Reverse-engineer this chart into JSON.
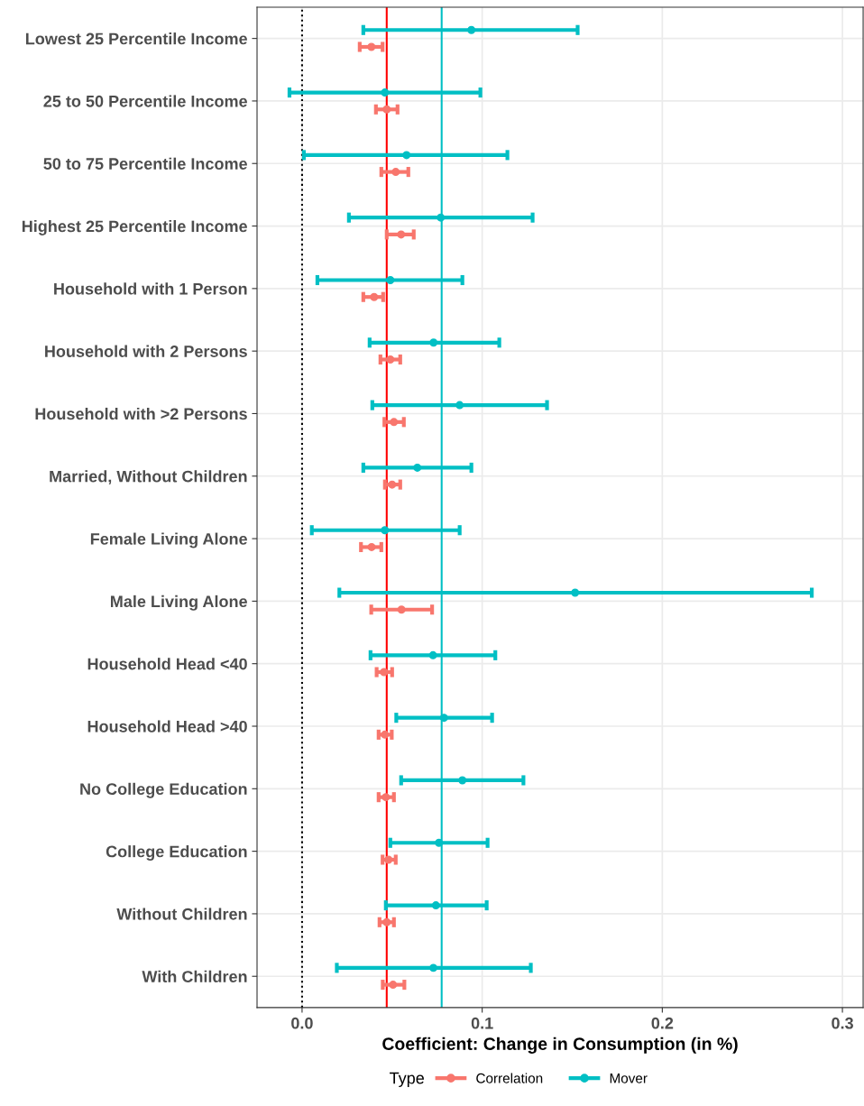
{
  "chart_data": {
    "type": "scatter",
    "orientation": "horizontal",
    "xlabel": "Coefficient: Change in Consumption (in %)",
    "legend_title": "Type",
    "categories": [
      "Lowest 25 Percentile Income",
      "25 to 50 Percentile Income",
      "50 to 75 Percentile Income",
      "Highest 25 Percentile Income",
      "Household with 1 Person",
      "Household with 2 Persons",
      "Household with >2 Persons",
      "Married, Without Children",
      "Female Living Alone",
      "Male Living Alone",
      "Household Head <40",
      "Household Head >40",
      "No College Education",
      "College Education",
      "Without Children",
      "With Children"
    ],
    "series": [
      {
        "name": "Correlation",
        "color": "#f8766d",
        "values": [
          0.0385,
          0.047,
          0.052,
          0.055,
          0.04,
          0.049,
          0.051,
          0.05,
          0.0386,
          0.0552,
          0.0455,
          0.046,
          0.0465,
          0.048,
          0.047,
          0.0505
        ],
        "errors": [
          [
            0.032,
            0.0447
          ],
          [
            0.041,
            0.053
          ],
          [
            0.044,
            0.059
          ],
          [
            0.047,
            0.062
          ],
          [
            0.034,
            0.045
          ],
          [
            0.0435,
            0.0545
          ],
          [
            0.0457,
            0.0565
          ],
          [
            0.046,
            0.0545
          ],
          [
            0.0327,
            0.044
          ],
          [
            0.0384,
            0.0722
          ],
          [
            0.0414,
            0.05
          ],
          [
            0.0425,
            0.0498
          ],
          [
            0.0425,
            0.051
          ],
          [
            0.0447,
            0.052
          ],
          [
            0.043,
            0.051
          ],
          [
            0.0448,
            0.0568
          ]
        ]
      },
      {
        "name": "Mover",
        "color": "#00bfc4",
        "values": [
          0.094,
          0.046,
          0.058,
          0.077,
          0.049,
          0.073,
          0.0875,
          0.064,
          0.046,
          0.1516,
          0.0727,
          0.0788,
          0.089,
          0.076,
          0.0743,
          0.0729
        ],
        "errors": [
          [
            0.034,
            0.153
          ],
          [
            -0.007,
            0.099
          ],
          [
            0.001,
            0.114
          ],
          [
            0.026,
            0.128
          ],
          [
            0.0085,
            0.089
          ],
          [
            0.0375,
            0.1095
          ],
          [
            0.039,
            0.136
          ],
          [
            0.034,
            0.094
          ],
          [
            0.0054,
            0.0875
          ],
          [
            0.0207,
            0.283
          ],
          [
            0.038,
            0.1073
          ],
          [
            0.0523,
            0.1055
          ],
          [
            0.055,
            0.1229
          ],
          [
            0.049,
            0.103
          ],
          [
            0.0465,
            0.1025
          ],
          [
            0.0193,
            0.127
          ]
        ]
      }
    ],
    "ref_lines": [
      {
        "axis": "x",
        "value": 0,
        "color": "#000000",
        "line_style": "dotted"
      },
      {
        "axis": "x",
        "value": 0.047,
        "color": "#ff0000",
        "line_style": "solid"
      },
      {
        "axis": "x",
        "value": 0.0775,
        "color": "#00bfc4",
        "line_style": "solid"
      }
    ],
    "xlim": [
      -0.025,
      0.3115
    ],
    "xticks": [
      {
        "value": 0,
        "label": "0.0"
      },
      {
        "value": 0.1,
        "label": "0.1"
      },
      {
        "value": 0.2,
        "label": "0.2"
      },
      {
        "value": 0.3,
        "label": "0.3"
      }
    ],
    "grid": true,
    "legend": "bottom",
    "marker": "circle",
    "line_style": "solid"
  }
}
